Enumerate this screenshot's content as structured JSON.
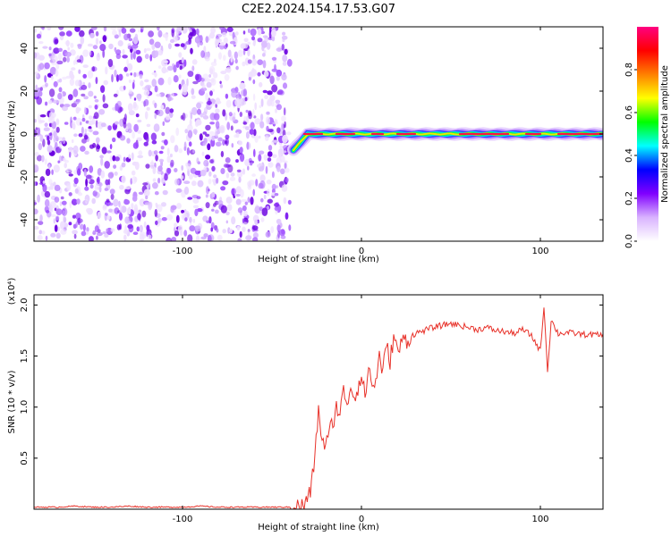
{
  "figure": {
    "title": "C2E2.2024.154.17.53.G07"
  },
  "chart_data": [
    {
      "type": "heatmap",
      "xlabel": "Height of straight line (km)",
      "ylabel": "Frequency (Hz)",
      "xlim": [
        -183,
        135
      ],
      "ylim": [
        -50,
        50
      ],
      "xticks": [
        -100,
        0,
        100
      ],
      "yticks": [
        -40,
        -20,
        0,
        20,
        40
      ],
      "grid": false,
      "description_of_signal": {
        "noise_region_x": [
          -183,
          -40
        ],
        "signal_region_x": [
          -35,
          135
        ],
        "signal_frequency_hz": 0
      },
      "colorbar": {
        "label": "Normalized spectral amplitude",
        "range": [
          0.0,
          1.0
        ],
        "ticks": [
          0.0,
          0.2,
          0.4,
          0.6,
          0.8
        ],
        "colors": [
          "#ffffff",
          "#d9b3ff",
          "#8000ff",
          "#0000ff",
          "#00ffff",
          "#00ff00",
          "#ffff00",
          "#ff8000",
          "#ff0000",
          "#ff0080"
        ]
      }
    },
    {
      "type": "line",
      "xlabel": "Height of straight line (km)",
      "ylabel": "SNR (10 * v/v)",
      "y_multiplier": "(x10⁴)",
      "xlim": [
        -183,
        135
      ],
      "ylim": [
        0,
        2.1
      ],
      "xticks": [
        -100,
        0,
        100
      ],
      "yticks": [
        0.5,
        1.0,
        1.5,
        2.0
      ],
      "ytick_labels": [
        "0.5",
        "1.0",
        "1.5",
        "2.0"
      ],
      "grid": false,
      "series": [
        {
          "color": "#e8322a",
          "x": [
            -183,
            -170,
            -160,
            -150,
            -140,
            -130,
            -120,
            -110,
            -100,
            -90,
            -80,
            -70,
            -60,
            -50,
            -40,
            -32,
            -28,
            -26,
            -24,
            -22,
            -20,
            -18,
            -16,
            -14,
            -12,
            -10,
            -8,
            -6,
            -4,
            -2,
            0,
            2,
            4,
            6,
            8,
            10,
            12,
            14,
            16,
            18,
            20,
            22,
            24,
            26,
            28,
            30,
            35,
            40,
            45,
            50,
            55,
            60,
            65,
            70,
            75,
            80,
            85,
            90,
            95,
            100,
            102,
            104,
            106,
            110,
            115,
            120,
            125,
            130,
            135
          ],
          "y": [
            0.02,
            0.02,
            0.03,
            0.02,
            0.02,
            0.03,
            0.02,
            0.02,
            0.02,
            0.03,
            0.02,
            0.02,
            0.02,
            0.02,
            0.02,
            0.03,
            0.2,
            0.55,
            0.95,
            0.7,
            0.6,
            0.75,
            0.85,
            1.0,
            0.95,
            1.15,
            1.05,
            1.2,
            1.1,
            1.2,
            1.3,
            1.1,
            1.4,
            1.2,
            1.25,
            1.5,
            1.35,
            1.6,
            1.45,
            1.7,
            1.55,
            1.6,
            1.68,
            1.65,
            1.7,
            1.72,
            1.75,
            1.78,
            1.8,
            1.82,
            1.8,
            1.78,
            1.76,
            1.78,
            1.75,
            1.74,
            1.72,
            1.76,
            1.7,
            1.55,
            2.0,
            1.35,
            1.85,
            1.72,
            1.73,
            1.72,
            1.71,
            1.71,
            1.7
          ]
        }
      ]
    }
  ]
}
